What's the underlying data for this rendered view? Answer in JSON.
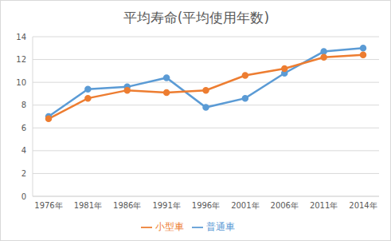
{
  "chart_data": {
    "type": "line",
    "title": "平均寿命(平均使用年数)",
    "categories": [
      "1976年",
      "1981年",
      "1986年",
      "1991年",
      "1996年",
      "2001年",
      "2006年",
      "2011年",
      "2014年"
    ],
    "series": [
      {
        "name": "普通車",
        "color": "#5b9bd5",
        "marker": "circle",
        "values": [
          7.0,
          9.4,
          9.6,
          10.4,
          7.8,
          8.6,
          10.8,
          12.7,
          13.0
        ]
      },
      {
        "name": "小型車",
        "color": "#ed7d31",
        "marker": "circle",
        "values": [
          6.8,
          8.6,
          9.3,
          9.1,
          9.3,
          10.6,
          11.2,
          12.2,
          12.4
        ]
      }
    ],
    "ylim": [
      0,
      14
    ],
    "yticks": [
      0,
      2,
      4,
      6,
      8,
      10,
      12,
      14
    ],
    "grid": true,
    "legend": "bottom"
  }
}
